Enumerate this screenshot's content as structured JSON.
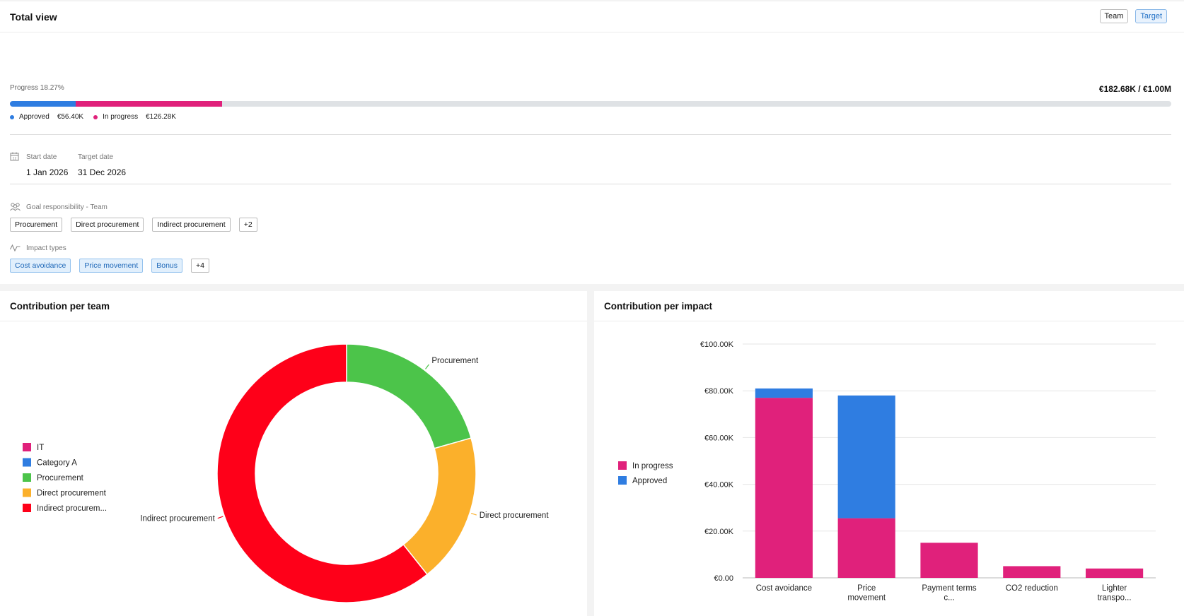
{
  "header": {
    "title": "Total view",
    "toggle": [
      "Team",
      "Target"
    ],
    "active_toggle": "Target"
  },
  "progress": {
    "label": "Progress 18.27%",
    "total_label": "€182.68K / €1.00M",
    "approved_fraction": 0.0564,
    "in_progress_fraction": 0.1263,
    "approved_label": "Approved",
    "approved_value": "€56.40K",
    "in_progress_label": "In progress",
    "in_progress_value": "€126.28K",
    "approved_color": "#2f7de1",
    "in_progress_color": "#e0217b"
  },
  "dates": {
    "start_label": "Start date",
    "start_value": "1 Jan 2026",
    "target_label": "Target date",
    "target_value": "31 Dec 2026"
  },
  "responsibility": {
    "label": "Goal responsibility - Team",
    "chips": [
      "Procurement",
      "Direct procurement",
      "Indirect procurement",
      "+2"
    ]
  },
  "impact_types": {
    "label": "Impact types",
    "chips": [
      "Cost avoidance",
      "Price movement",
      "Bonus",
      "+4"
    ]
  },
  "team_card": {
    "title": "Contribution per team"
  },
  "impact_card": {
    "title": "Contribution per impact"
  },
  "chart_data": [
    {
      "type": "pie",
      "title": "Contribution per team",
      "legend": [
        {
          "name": "IT",
          "color": "#e0217b"
        },
        {
          "name": "Category A",
          "color": "#2f7de1"
        },
        {
          "name": "Procurement",
          "color": "#4cc44a"
        },
        {
          "name": "Direct procurement",
          "color": "#fbb02b"
        },
        {
          "name": "Indirect procurem...",
          "color": "#fe0019"
        }
      ],
      "slices": [
        {
          "name": "Procurement",
          "value": 20.6,
          "color": "#4cc44a"
        },
        {
          "name": "Direct procurement",
          "value": 18.7,
          "color": "#fbb02b"
        },
        {
          "name": "Indirect procurement",
          "value": 60.7,
          "color": "#fe0019"
        }
      ],
      "legend_position": "left"
    },
    {
      "type": "bar",
      "stacked": true,
      "title": "Contribution per impact",
      "categories": [
        [
          "Cost avoidance"
        ],
        [
          "Price",
          "movement"
        ],
        [
          "Payment terms",
          "c..."
        ],
        [
          "CO2 reduction"
        ],
        [
          "Lighter",
          "transpo..."
        ]
      ],
      "series": [
        {
          "name": "In progress",
          "color": "#e0217b",
          "values": [
            77.0,
            25.5,
            15.0,
            5.0,
            4.0
          ]
        },
        {
          "name": "Approved",
          "color": "#2f7de1",
          "values": [
            4.0,
            52.5,
            0,
            0,
            0
          ]
        }
      ],
      "yticks": [
        "€0.00",
        "€20.00K",
        "€40.00K",
        "€60.00K",
        "€80.00K",
        "€100.00K"
      ],
      "ylim": [
        0,
        100
      ],
      "grid": true,
      "legend_position": "left"
    }
  ]
}
